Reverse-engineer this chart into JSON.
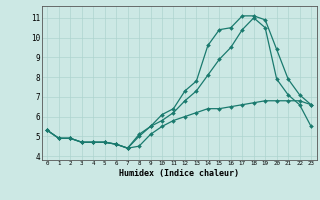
{
  "title": "",
  "xlabel": "Humidex (Indice chaleur)",
  "ylabel": "",
  "bg_color": "#cce8e4",
  "grid_color": "#aed4cf",
  "line_color": "#1a7a6e",
  "x_ticks": [
    0,
    1,
    2,
    3,
    4,
    5,
    6,
    7,
    8,
    9,
    10,
    11,
    12,
    13,
    14,
    15,
    16,
    17,
    18,
    19,
    20,
    21,
    22,
    23
  ],
  "y_ticks": [
    4,
    5,
    6,
    7,
    8,
    9,
    10,
    11
  ],
  "xlim": [
    -0.5,
    23.5
  ],
  "ylim": [
    3.8,
    11.6
  ],
  "series": [
    {
      "x": [
        0,
        1,
        2,
        3,
        4,
        5,
        6,
        7,
        8,
        9,
        10,
        11,
        12,
        13,
        14,
        15,
        16,
        17,
        18,
        19,
        20,
        21,
        22,
        23
      ],
      "y": [
        5.3,
        4.9,
        4.9,
        4.7,
        4.7,
        4.7,
        4.6,
        4.4,
        4.5,
        5.1,
        5.5,
        5.8,
        6.0,
        6.2,
        6.4,
        6.4,
        6.5,
        6.6,
        6.7,
        6.8,
        6.8,
        6.8,
        6.8,
        6.6
      ]
    },
    {
      "x": [
        0,
        1,
        2,
        3,
        4,
        5,
        6,
        7,
        8,
        9,
        10,
        11,
        12,
        13,
        14,
        15,
        16,
        17,
        18,
        19,
        20,
        21,
        22,
        23
      ],
      "y": [
        5.3,
        4.9,
        4.9,
        4.7,
        4.7,
        4.7,
        4.6,
        4.4,
        5.0,
        5.5,
        6.1,
        6.4,
        7.3,
        7.8,
        9.6,
        10.4,
        10.5,
        11.1,
        11.1,
        10.9,
        9.4,
        7.9,
        7.1,
        6.6
      ]
    },
    {
      "x": [
        0,
        1,
        2,
        3,
        4,
        5,
        6,
        7,
        8,
        9,
        10,
        11,
        12,
        13,
        14,
        15,
        16,
        17,
        18,
        19,
        20,
        21,
        22,
        23
      ],
      "y": [
        5.3,
        4.9,
        4.9,
        4.7,
        4.7,
        4.7,
        4.6,
        4.4,
        5.1,
        5.5,
        5.8,
        6.2,
        6.8,
        7.3,
        8.1,
        8.9,
        9.5,
        10.4,
        11.0,
        10.5,
        7.9,
        7.1,
        6.6,
        5.5
      ]
    }
  ]
}
